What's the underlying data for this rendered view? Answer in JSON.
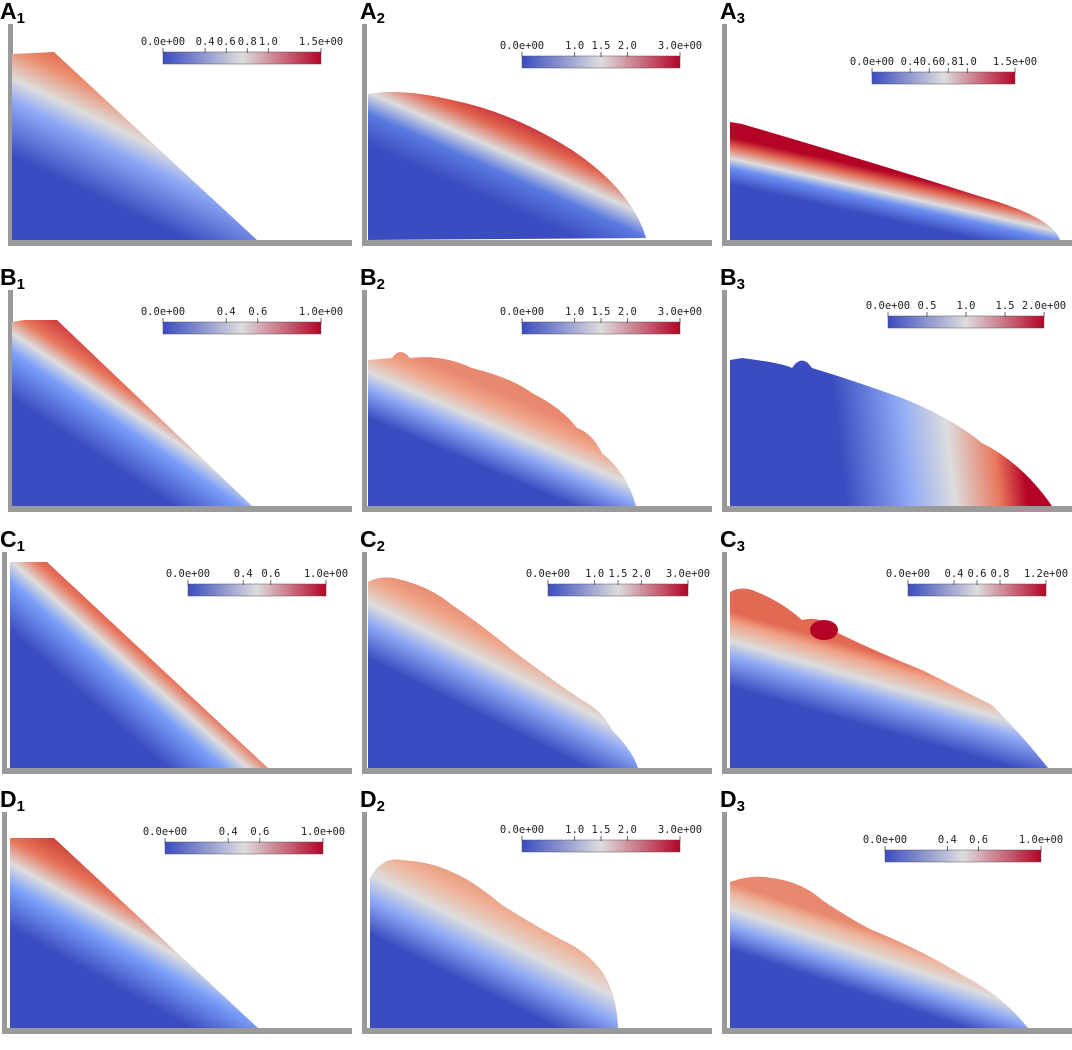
{
  "colormap": {
    "low": "#3b4cc0",
    "mid": "#dddddd",
    "high": "#b40426"
  },
  "panels": [
    {
      "letter": "A",
      "sub": "1",
      "ticks": [
        "0.0e+00",
        "0.4",
        "0.6",
        "0.8",
        "1.0",
        "1.5e+00"
      ],
      "tick_values": [
        0,
        0.4,
        0.6,
        0.8,
        1.0,
        1.5
      ],
      "range": [
        0,
        1.5
      ]
    },
    {
      "letter": "A",
      "sub": "2",
      "ticks": [
        "0.0e+00",
        "1.0",
        "1.5",
        "2.0",
        "3.0e+00"
      ],
      "tick_values": [
        0,
        1.0,
        1.5,
        2.0,
        3.0
      ],
      "range": [
        0,
        3.0
      ]
    },
    {
      "letter": "A",
      "sub": "3",
      "ticks": [
        "0.0e+00",
        "0.4",
        "0.6",
        "0.8",
        "1.0",
        "1.5e+00"
      ],
      "tick_values": [
        0,
        0.4,
        0.6,
        0.8,
        1.0,
        1.5
      ],
      "range": [
        0,
        1.5
      ]
    },
    {
      "letter": "B",
      "sub": "1",
      "ticks": [
        "0.0e+00",
        "0.4",
        "0.6",
        "1.0e+00"
      ],
      "tick_values": [
        0,
        0.4,
        0.6,
        1.0
      ],
      "range": [
        0,
        1.0
      ]
    },
    {
      "letter": "B",
      "sub": "2",
      "ticks": [
        "0.0e+00",
        "1.0",
        "1.5",
        "2.0",
        "3.0e+00"
      ],
      "tick_values": [
        0,
        1.0,
        1.5,
        2.0,
        3.0
      ],
      "range": [
        0,
        3.0
      ]
    },
    {
      "letter": "B",
      "sub": "3",
      "ticks": [
        "0.0e+00",
        "0.5",
        "1.0",
        "1.5",
        "2.0e+00"
      ],
      "tick_values": [
        0,
        0.5,
        1.0,
        1.5,
        2.0
      ],
      "range": [
        0,
        2.0
      ]
    },
    {
      "letter": "C",
      "sub": "1",
      "ticks": [
        "0.0e+00",
        "0.4",
        "0.6",
        "1.0e+00"
      ],
      "tick_values": [
        0,
        0.4,
        0.6,
        1.0
      ],
      "range": [
        0,
        1.0
      ]
    },
    {
      "letter": "C",
      "sub": "2",
      "ticks": [
        "0.0e+00",
        "1.0",
        "1.5",
        "2.0",
        "3.0e+00"
      ],
      "tick_values": [
        0,
        1.0,
        1.5,
        2.0,
        3.0
      ],
      "range": [
        0,
        3.0
      ]
    },
    {
      "letter": "C",
      "sub": "3",
      "ticks": [
        "0.0e+00",
        "0.4",
        "0.6",
        "0.8",
        "1.2e+00"
      ],
      "tick_values": [
        0,
        0.4,
        0.6,
        0.8,
        1.2
      ],
      "range": [
        0,
        1.2
      ]
    },
    {
      "letter": "D",
      "sub": "1",
      "ticks": [
        "0.0e+00",
        "0.4",
        "0.6",
        "1.0e+00"
      ],
      "tick_values": [
        0,
        0.4,
        0.6,
        1.0
      ],
      "range": [
        0,
        1.0
      ]
    },
    {
      "letter": "D",
      "sub": "2",
      "ticks": [
        "0.0e+00",
        "1.0",
        "1.5",
        "2.0",
        "3.0e+00"
      ],
      "tick_values": [
        0,
        1.0,
        1.5,
        2.0,
        3.0
      ],
      "range": [
        0,
        3.0
      ]
    },
    {
      "letter": "D",
      "sub": "3",
      "ticks": [
        "0.0e+00",
        "0.4",
        "0.6",
        "1.0e+00"
      ],
      "tick_values": [
        0,
        0.4,
        0.6,
        1.0
      ],
      "range": [
        0,
        1.0
      ]
    }
  ]
}
